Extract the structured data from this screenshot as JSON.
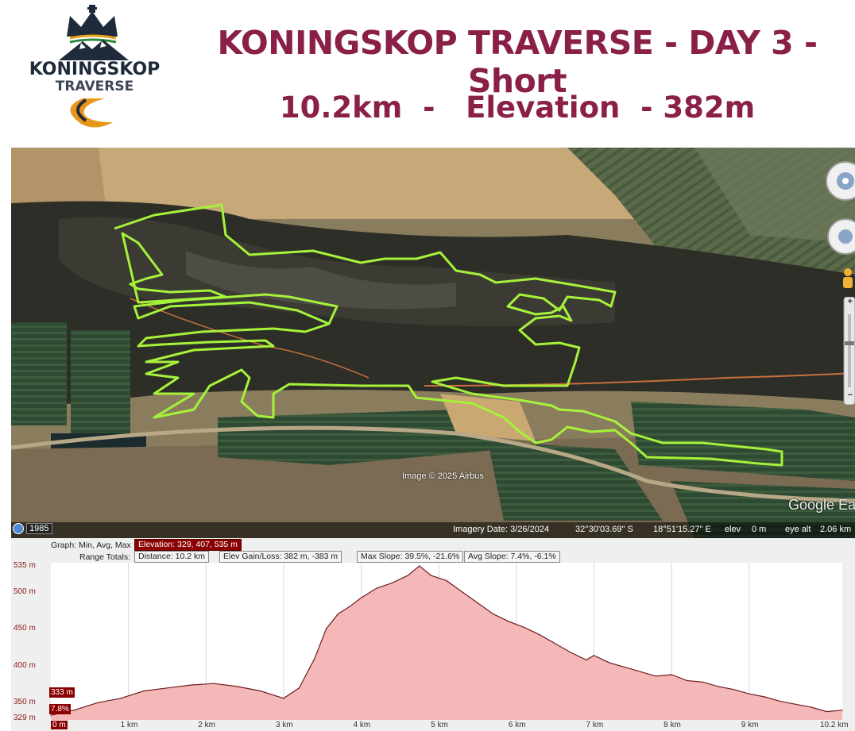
{
  "header": {
    "logo_line1": "KONINGSKOP",
    "logo_line2": "TRAVERSE",
    "title": "KONINGSKOP TRAVERSE - DAY 3 - Short",
    "subtitle": "10.2km  -   Elevation  - 382m"
  },
  "map": {
    "credit": "Image © 2025 Airbus",
    "watermark": "Google Ea",
    "year_button": "1985",
    "imagery_date": "Imagery Date: 3/26/2024",
    "latitude": "32°30'03.69\" S",
    "longitude": "18°51'15.27\" E",
    "elev_label": "elev",
    "elev_value": "0 m",
    "eye_alt_label": "eye alt",
    "eye_alt_value": "2.06 km",
    "zoom_in": "+",
    "zoom_out": "−",
    "colors": {
      "route": "#a6f23a",
      "track": "#c8703a"
    }
  },
  "profile": {
    "graph_label": "Graph: Min, Avg, Max",
    "elevation_box": "Elevation: 329, 407, 535 m",
    "range_label": "Range Totals:",
    "distance_box": "Distance: 10.2 km",
    "gain_box": "Elev Gain/Loss: 382 m, -383 m",
    "max_slope_box": "Max Slope: 39.5%, -21.6%",
    "avg_slope_box": "Avg Slope: 7.4%, -6.1%",
    "y_labels": [
      "535 m",
      "500 m",
      "450 m",
      "400 m",
      "350 m",
      "329 m"
    ],
    "x_labels": [
      "0 m",
      "1 km",
      "2 km",
      "3 km",
      "4 km",
      "5 km",
      "6 km",
      "7 km",
      "8 km",
      "9 km",
      "10.2 km"
    ],
    "marker_elev": "333 m",
    "marker_slope": "7.8%"
  },
  "chart_data": {
    "type": "area",
    "xlabel": "",
    "ylabel": "",
    "ylim": [
      329,
      535
    ],
    "xlim": [
      0,
      10.2
    ],
    "x_unit": "km",
    "y_unit": "m",
    "series": [
      {
        "x": [
          0,
          0.3,
          0.6,
          0.9,
          1.2,
          1.5,
          1.8,
          2.1,
          2.4,
          2.7,
          3.0,
          3.2,
          3.4,
          3.55,
          3.7,
          3.85,
          4.0,
          4.2,
          4.4,
          4.6,
          4.75,
          4.9,
          5.1,
          5.3,
          5.5,
          5.7,
          5.9,
          6.1,
          6.3,
          6.5,
          6.7,
          6.9,
          7.0,
          7.2,
          7.4,
          7.6,
          7.8,
          8.0,
          8.2,
          8.4,
          8.6,
          8.8,
          9.0,
          9.2,
          9.4,
          9.6,
          9.8,
          10.0,
          10.2
        ],
        "y": [
          333,
          340,
          350,
          356,
          366,
          370,
          374,
          376,
          372,
          366,
          356,
          370,
          410,
          450,
          470,
          480,
          492,
          505,
          512,
          522,
          535,
          522,
          515,
          500,
          485,
          470,
          460,
          452,
          442,
          430,
          418,
          408,
          414,
          404,
          398,
          392,
          386,
          388,
          380,
          378,
          372,
          368,
          362,
          358,
          352,
          348,
          344,
          338,
          340
        ]
      }
    ]
  }
}
